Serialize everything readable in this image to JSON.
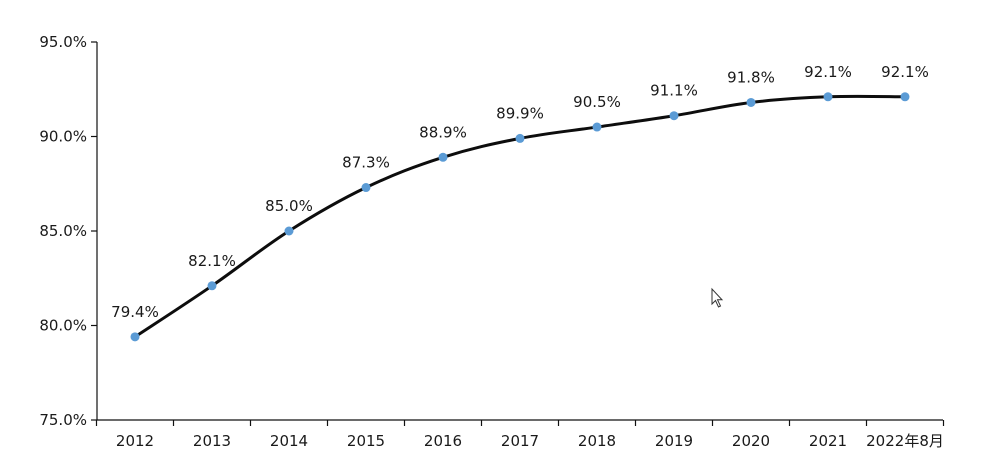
{
  "chart_data": {
    "type": "line",
    "title": "",
    "xlabel": "",
    "ylabel": "",
    "categories": [
      "2012",
      "2013",
      "2014",
      "2015",
      "2016",
      "2017",
      "2018",
      "2019",
      "2020",
      "2021",
      "2022年8月"
    ],
    "series": [
      {
        "values": [
          79.4,
          82.1,
          85.0,
          87.3,
          88.9,
          89.9,
          90.5,
          91.1,
          91.8,
          92.1,
          92.1
        ],
        "labels": [
          "79.4%",
          "82.1%",
          "85.0%",
          "87.3%",
          "88.9%",
          "89.9%",
          "90.5%",
          "91.1%",
          "91.8%",
          "92.1%",
          "92.1%"
        ],
        "line_color": "#0d0d0d",
        "marker_color": "#5b9bd5"
      }
    ],
    "ylim": [
      75.0,
      95.0
    ],
    "yticks": [
      75.0,
      80.0,
      85.0,
      90.0,
      95.0
    ],
    "ytick_labels": [
      "75.0%",
      "80.0%",
      "85.0%",
      "90.0%",
      "95.0%"
    ],
    "grid": false,
    "legend": "none"
  }
}
